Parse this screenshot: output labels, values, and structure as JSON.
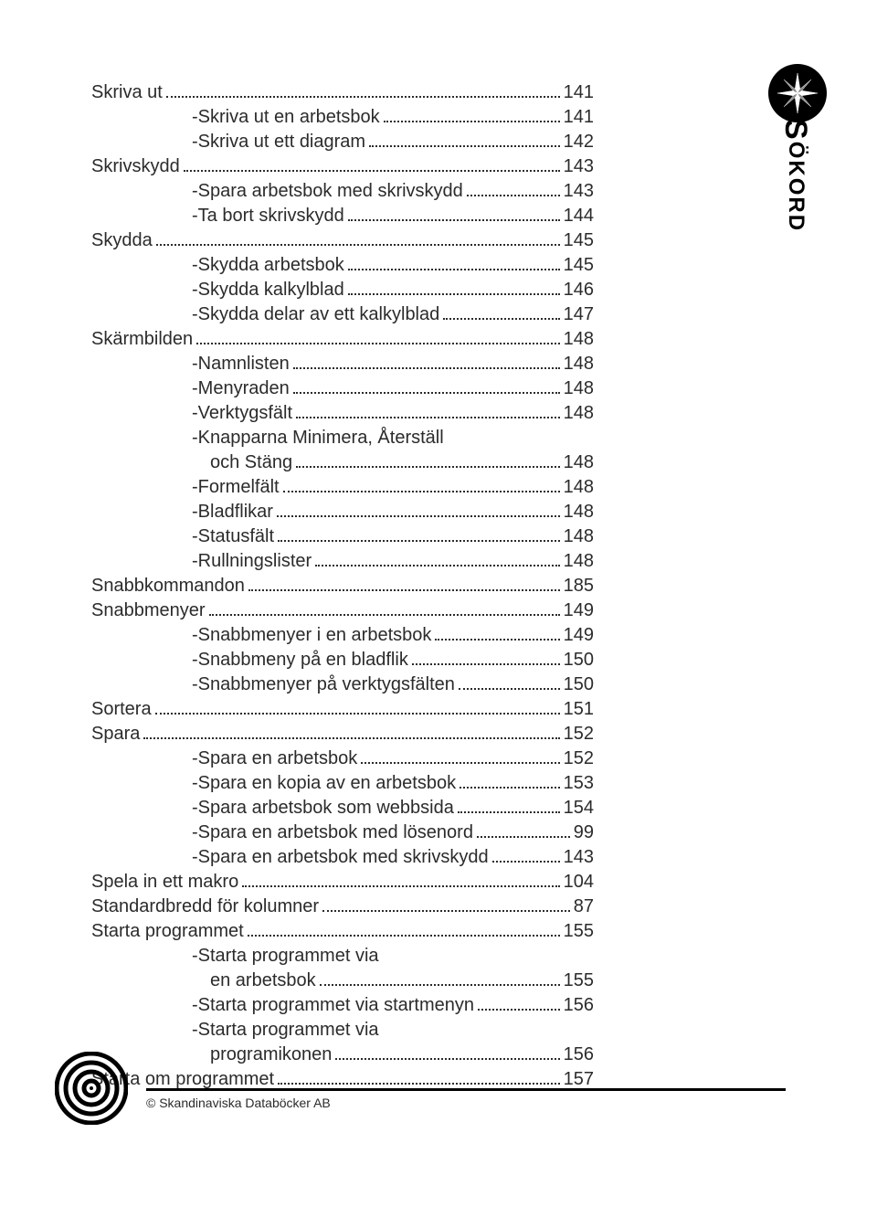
{
  "sideTab": {
    "first": "S",
    "rest": "ÖKORD"
  },
  "footer": {
    "copyright": "© Skandinaviska Databöcker AB"
  },
  "colors": {
    "text": "#2b2b2b",
    "background": "#ffffff",
    "accent": "#000000"
  },
  "entries": [
    {
      "label": "Skriva ut",
      "page": "141",
      "indent": 0
    },
    {
      "label": "-Skriva ut en arbetsbok",
      "page": "141",
      "indent": 1
    },
    {
      "label": "-Skriva ut ett diagram",
      "page": "142",
      "indent": 1
    },
    {
      "label": "Skrivskydd",
      "page": "143",
      "indent": 0
    },
    {
      "label": "-Spara arbetsbok med skrivskydd",
      "page": "143",
      "indent": 1
    },
    {
      "label": "-Ta bort skrivskydd",
      "page": "144",
      "indent": 1
    },
    {
      "label": "Skydda",
      "page": "145",
      "indent": 0
    },
    {
      "label": "-Skydda arbetsbok",
      "page": "145",
      "indent": 1
    },
    {
      "label": "-Skydda kalkylblad",
      "page": "146",
      "indent": 1
    },
    {
      "label": "-Skydda delar av ett kalkylblad",
      "page": "147",
      "indent": 1
    },
    {
      "label": "Skärmbilden",
      "page": "148",
      "indent": 0
    },
    {
      "label": "-Namnlisten",
      "page": "148",
      "indent": 1
    },
    {
      "label": "-Menyraden",
      "page": "148",
      "indent": 1
    },
    {
      "label": "-Verktygsfält",
      "page": "148",
      "indent": 1
    },
    {
      "label": "-Knapparna Minimera, Återställ",
      "cont": "och Stäng",
      "page": "148",
      "indent": 1
    },
    {
      "label": "-Formelfält",
      "page": "148",
      "indent": 1
    },
    {
      "label": "-Bladflikar",
      "page": "148",
      "indent": 1
    },
    {
      "label": "-Statusfält",
      "page": "148",
      "indent": 1
    },
    {
      "label": "-Rullningslister",
      "page": "148",
      "indent": 1
    },
    {
      "label": "Snabbkommandon",
      "page": "185",
      "indent": 0
    },
    {
      "label": "Snabbmenyer",
      "page": "149",
      "indent": 0
    },
    {
      "label": "-Snabbmenyer i en arbetsbok",
      "page": "149",
      "indent": 1
    },
    {
      "label": "-Snabbmeny på en bladflik",
      "page": "150",
      "indent": 1
    },
    {
      "label": "-Snabbmenyer på verktygsfälten",
      "page": "150",
      "indent": 1
    },
    {
      "label": "Sortera",
      "page": "151",
      "indent": 0
    },
    {
      "label": "Spara",
      "page": "152",
      "indent": 0
    },
    {
      "label": "-Spara en arbetsbok",
      "page": "152",
      "indent": 1
    },
    {
      "label": "-Spara en kopia av en arbetsbok",
      "page": "153",
      "indent": 1
    },
    {
      "label": "-Spara arbetsbok som webbsida",
      "page": "154",
      "indent": 1
    },
    {
      "label": "-Spara en arbetsbok med lösenord",
      "page": "99",
      "indent": 1
    },
    {
      "label": "-Spara en arbetsbok med skrivskydd",
      "page": "143",
      "indent": 1
    },
    {
      "label": "Spela in ett makro",
      "page": "104",
      "indent": 0
    },
    {
      "label": "Standardbredd för kolumner",
      "page": "87",
      "indent": 0
    },
    {
      "label": "Starta programmet",
      "page": "155",
      "indent": 0
    },
    {
      "label": "-Starta programmet via",
      "cont": "en arbetsbok",
      "page": "155",
      "indent": 1
    },
    {
      "label": "-Starta programmet via startmenyn",
      "page": "156",
      "indent": 1
    },
    {
      "label": "-Starta programmet via",
      "cont": "programikonen",
      "page": "156",
      "indent": 1
    },
    {
      "label": "Starta om programmet",
      "page": "157",
      "indent": 0
    }
  ]
}
